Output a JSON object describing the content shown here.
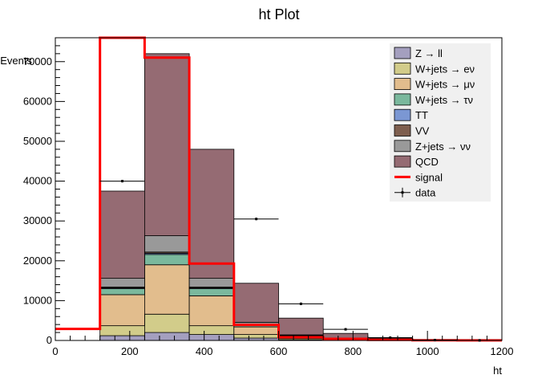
{
  "chart_data": {
    "type": "bar",
    "stacked": true,
    "title": "ht Plot",
    "xlabel": "ht",
    "ylabel": "Events",
    "xlim": [
      0,
      1200
    ],
    "ylim": [
      0,
      76000
    ],
    "x_ticks": [
      "0",
      "200",
      "400",
      "600",
      "800",
      "1000",
      "1200"
    ],
    "y_ticks": [
      "0",
      "10000",
      "20000",
      "30000",
      "40000",
      "50000",
      "60000",
      "70000"
    ],
    "x_tick_values": [
      0,
      200,
      400,
      600,
      800,
      1000,
      1200
    ],
    "y_tick_values": [
      0,
      10000,
      20000,
      30000,
      40000,
      50000,
      60000,
      70000
    ],
    "bin_edges": [
      0,
      120,
      240,
      360,
      480,
      600,
      720,
      840,
      960,
      1080,
      1200
    ],
    "grid": false,
    "legend_position": "top-right",
    "series": [
      {
        "name": "Z → ll",
        "color": "#a49fbf",
        "values": [
          0,
          1200,
          2000,
          1500,
          600,
          200,
          60,
          20,
          5,
          0
        ]
      },
      {
        "name": "W+jets → eν",
        "color": "#d2cc8a",
        "values": [
          0,
          2500,
          4600,
          2200,
          900,
          300,
          80,
          25,
          5,
          0
        ]
      },
      {
        "name": "W+jets → μν",
        "color": "#e2bd8d",
        "values": [
          0,
          7800,
          12400,
          7500,
          1900,
          600,
          150,
          40,
          10,
          0
        ]
      },
      {
        "name": "W+jets → τν",
        "color": "#7ab89d",
        "values": [
          0,
          1500,
          2600,
          1800,
          500,
          150,
          40,
          10,
          0,
          0
        ]
      },
      {
        "name": "TT",
        "color": "#7b97d3",
        "values": [
          0,
          200,
          300,
          200,
          80,
          30,
          10,
          5,
          0,
          0
        ]
      },
      {
        "name": "VV",
        "color": "#7e5e4e",
        "values": [
          0,
          200,
          300,
          200,
          80,
          30,
          10,
          5,
          0,
          0
        ]
      },
      {
        "name": "Z+jets → νν",
        "color": "#999999",
        "values": [
          0,
          2200,
          4100,
          2200,
          500,
          100,
          30,
          10,
          0,
          0
        ]
      },
      {
        "name": "QCD",
        "color": "#956b73",
        "values": [
          0,
          21900,
          45700,
          32400,
          9800,
          4200,
          1400,
          400,
          80,
          20
        ]
      }
    ],
    "signal": {
      "name": "signal",
      "color": "#ff0000",
      "values": [
        2900,
        76000,
        71000,
        19300,
        3900,
        800,
        400,
        150,
        50,
        20
      ]
    },
    "data": {
      "name": "data",
      "values": [
        null,
        40000,
        null,
        null,
        30500,
        9200,
        2800,
        700,
        100,
        20
      ]
    },
    "legend_entries": [
      {
        "label": "Z → ll",
        "kind": "box",
        "color": "#a49fbf"
      },
      {
        "label": "W+jets → eν",
        "kind": "box",
        "color": "#d2cc8a"
      },
      {
        "label": "W+jets → μν",
        "kind": "box",
        "color": "#e2bd8d"
      },
      {
        "label": "W+jets → τν",
        "kind": "box",
        "color": "#7ab89d"
      },
      {
        "label": "TT",
        "kind": "box",
        "color": "#7b97d3"
      },
      {
        "label": "VV",
        "kind": "box",
        "color": "#7e5e4e"
      },
      {
        "label": "Z+jets → νν",
        "kind": "box",
        "color": "#999999"
      },
      {
        "label": "QCD",
        "kind": "box",
        "color": "#956b73"
      },
      {
        "label": "signal",
        "kind": "line",
        "color": "#ff0000"
      },
      {
        "label": "data",
        "kind": "marker",
        "color": "#000000"
      }
    ]
  }
}
